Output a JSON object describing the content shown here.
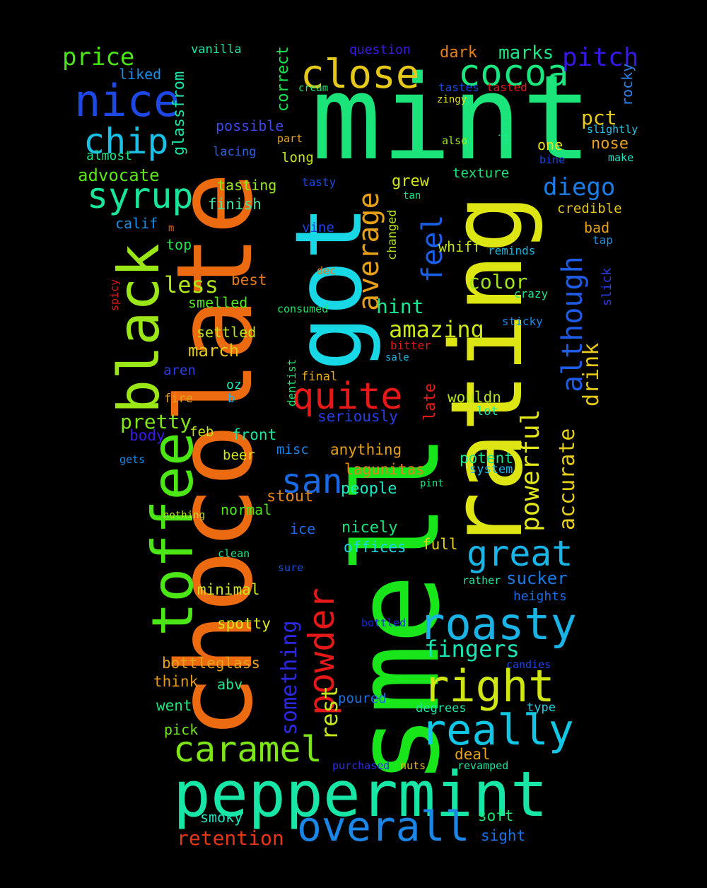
{
  "words": [
    {
      "text": "mint",
      "color": "#1be47a"
    },
    {
      "text": "smell",
      "color": "#18e61a"
    },
    {
      "text": "chocolate",
      "color": "#ec6b10"
    },
    {
      "text": "rating",
      "color": "#dde613"
    },
    {
      "text": "got",
      "color": "#18d8e6"
    },
    {
      "text": "peppermint",
      "color": "#18e6a6"
    },
    {
      "text": "black",
      "color": "#9be617"
    },
    {
      "text": "toffee",
      "color": "#4ce617"
    },
    {
      "text": "overall",
      "color": "#1c86e6"
    },
    {
      "text": "roasty",
      "color": "#1ab3e6"
    },
    {
      "text": "close",
      "color": "#e6c818"
    },
    {
      "text": "cocoa",
      "color": "#1be67d"
    },
    {
      "text": "nice",
      "color": "#1e48e6"
    },
    {
      "text": "right",
      "color": "#cfe613"
    },
    {
      "text": "really",
      "color": "#12c6e6"
    },
    {
      "text": "great",
      "color": "#19b5e6"
    },
    {
      "text": "caramel",
      "color": "#7ee616"
    },
    {
      "text": "syrup",
      "color": "#19e69a"
    },
    {
      "text": "chip",
      "color": "#19c1e6"
    },
    {
      "text": "quite",
      "color": "#e61818"
    },
    {
      "text": "powder",
      "color": "#e61818"
    },
    {
      "text": "san",
      "color": "#1a6ae6"
    },
    {
      "text": "although",
      "color": "#1e5be6"
    },
    {
      "text": "average",
      "color": "#e6a018"
    },
    {
      "text": "feel",
      "color": "#1a60e6"
    },
    {
      "text": "powerful",
      "color": "#e3e618"
    },
    {
      "text": "accurate",
      "color": "#e6cd18"
    },
    {
      "text": "drink",
      "color": "#e6c818"
    },
    {
      "text": "something",
      "color": "#2c2ae6"
    },
    {
      "text": "rest",
      "color": "#c5e619"
    },
    {
      "text": "pitch",
      "color": "#3418e6"
    },
    {
      "text": "price",
      "color": "#4be618"
    },
    {
      "text": "diego",
      "color": "#1a7ee6"
    },
    {
      "text": "fingers",
      "color": "#19e6b4"
    },
    {
      "text": "amazing",
      "color": "#cde619"
    },
    {
      "text": "retention",
      "color": "#e63618"
    },
    {
      "text": "less",
      "color": "#aee619"
    },
    {
      "text": "color",
      "color": "#a1e619"
    },
    {
      "text": "hint",
      "color": "#19e690"
    },
    {
      "text": "pretty",
      "color": "#81e618"
    },
    {
      "text": "marks",
      "color": "#1be685"
    },
    {
      "text": "dark",
      "color": "#e6811a"
    },
    {
      "text": "glassfrom",
      "color": "#19e6a8"
    },
    {
      "text": "correct",
      "color": "#17e650"
    },
    {
      "text": "advocate",
      "color": "#5ae617"
    },
    {
      "text": "pct",
      "color": "#e6cb18"
    },
    {
      "text": "nose",
      "color": "#e6a318"
    },
    {
      "text": "rocky",
      "color": "#2c81e6"
    },
    {
      "text": "liked",
      "color": "#1a8ee6"
    },
    {
      "text": "vanilla",
      "color": "#1be6a8"
    },
    {
      "text": "question",
      "color": "#3b1be6"
    },
    {
      "text": "possible",
      "color": "#3e48e6"
    },
    {
      "text": "almost",
      "color": "#1be681"
    },
    {
      "text": "lacing",
      "color": "#2a63e6"
    },
    {
      "text": "long",
      "color": "#c6e618"
    },
    {
      "text": "tasting",
      "color": "#9be618"
    },
    {
      "text": "finish",
      "color": "#40e6a0"
    },
    {
      "text": "calif",
      "color": "#1a8fe6"
    },
    {
      "text": "top",
      "color": "#1be64d"
    },
    {
      "text": "best",
      "color": "#e67a18"
    },
    {
      "text": "smelled",
      "color": "#51e619"
    },
    {
      "text": "settled",
      "color": "#bfe619"
    },
    {
      "text": "march",
      "color": "#e6c718"
    },
    {
      "text": "aren",
      "color": "#2a3de6"
    },
    {
      "text": "fire",
      "color": "#e6a01a"
    },
    {
      "text": "feb",
      "color": "#c5e618"
    },
    {
      "text": "body",
      "color": "#3c1ae6"
    },
    {
      "text": "front",
      "color": "#1be69d"
    },
    {
      "text": "oz",
      "color": "#1ae6b9"
    },
    {
      "text": "b",
      "color": "#1ab1e6"
    },
    {
      "text": "dentist",
      "color": "#1be670"
    },
    {
      "text": "final",
      "color": "#e6ae19"
    },
    {
      "text": "beer",
      "color": "#d2e618"
    },
    {
      "text": "misc",
      "color": "#1a84e6"
    },
    {
      "text": "anything",
      "color": "#e6a21a"
    },
    {
      "text": "lagunitas",
      "color": "#e6801a"
    },
    {
      "text": "people",
      "color": "#1ae6c0"
    },
    {
      "text": "stout",
      "color": "#e68618"
    },
    {
      "text": "normal",
      "color": "#47e618"
    },
    {
      "text": "ice",
      "color": "#1a6be6"
    },
    {
      "text": "nicely",
      "color": "#1be67e"
    },
    {
      "text": "offices",
      "color": "#1ad8e6"
    },
    {
      "text": "full",
      "color": "#e6d21a"
    },
    {
      "text": "minimal",
      "color": "#d0e618"
    },
    {
      "text": "spotty",
      "color": "#dbe618"
    },
    {
      "text": "bottleglass",
      "color": "#e6a21a"
    },
    {
      "text": "think",
      "color": "#e69a1a"
    },
    {
      "text": "abv",
      "color": "#1be68a"
    },
    {
      "text": "went",
      "color": "#1be679"
    },
    {
      "text": "pick",
      "color": "#6ee618"
    },
    {
      "text": "poured",
      "color": "#1a73e6"
    },
    {
      "text": "smoky",
      "color": "#1be6bd"
    },
    {
      "text": "soft",
      "color": "#1be671"
    },
    {
      "text": "sight",
      "color": "#1a73e6"
    },
    {
      "text": "deal",
      "color": "#e6a518"
    },
    {
      "text": "revamped",
      "color": "#1ae6a3"
    },
    {
      "text": "nuts",
      "color": "#e6bc1a"
    },
    {
      "text": "purchased",
      "color": "#2a2ee6"
    },
    {
      "text": "degrees",
      "color": "#1ae6a3"
    },
    {
      "text": "type",
      "color": "#1ad6e6"
    },
    {
      "text": "candies",
      "color": "#1b45e6"
    },
    {
      "text": "bottled",
      "color": "#1a29e6"
    },
    {
      "text": "sure",
      "color": "#1a4fe6"
    },
    {
      "text": "clean",
      "color": "#1be67d"
    },
    {
      "text": "nothing",
      "color": "#bde618"
    },
    {
      "text": "sucker",
      "color": "#1a7ae6"
    },
    {
      "text": "heights",
      "color": "#1a6be6"
    },
    {
      "text": "rather",
      "color": "#1be6a6"
    },
    {
      "text": "potent",
      "color": "#1be689"
    },
    {
      "text": "system",
      "color": "#1ab8e6"
    },
    {
      "text": "pint",
      "color": "#1ae681"
    },
    {
      "text": "gets",
      "color": "#1a88e6"
    },
    {
      "text": "lot",
      "color": "#1be6a9"
    },
    {
      "text": "wouldn",
      "color": "#b5e618"
    },
    {
      "text": "seriously",
      "color": "#2a3ee6"
    },
    {
      "text": "late",
      "color": "#e61e18"
    },
    {
      "text": "bitter",
      "color": "#e61818"
    },
    {
      "text": "sale",
      "color": "#1ab8e6"
    },
    {
      "text": "sticky",
      "color": "#1a88e6"
    },
    {
      "text": "crazy",
      "color": "#1be686"
    },
    {
      "text": "consumed",
      "color": "#1be669"
    },
    {
      "text": "dec",
      "color": "#e67a18"
    },
    {
      "text": "spicy",
      "color": "#e61818"
    },
    {
      "text": "whiff",
      "color": "#c3e618"
    },
    {
      "text": "reminds",
      "color": "#1ab8e6"
    },
    {
      "text": "changed",
      "color": "#b4e618"
    },
    {
      "text": "grew",
      "color": "#d5e618"
    },
    {
      "text": "tan",
      "color": "#1ae67c"
    },
    {
      "text": "tasty",
      "color": "#1a4be6"
    },
    {
      "text": "vine",
      "color": "#1b43e6"
    },
    {
      "text": "m",
      "color": "#e65a18"
    },
    {
      "text": "texture",
      "color": "#1be677"
    },
    {
      "text": "credible",
      "color": "#e6c618"
    },
    {
      "text": "bad",
      "color": "#e6a418"
    },
    {
      "text": "tap",
      "color": "#1a93e6"
    },
    {
      "text": "slick",
      "color": "#2a3de6"
    },
    {
      "text": "one",
      "color": "#e6e018"
    },
    {
      "text": "bine",
      "color": "#1b45e6"
    },
    {
      "text": "make",
      "color": "#1ae6c3"
    },
    {
      "text": "also",
      "color": "#a5e618"
    },
    {
      "text": "give",
      "color": "#1be690"
    },
    {
      "text": "part",
      "color": "#e6a618"
    },
    {
      "text": "cream",
      "color": "#1be671"
    },
    {
      "text": "tastes",
      "color": "#1b4be6"
    },
    {
      "text": "tasted",
      "color": "#e61818"
    },
    {
      "text": "zingy",
      "color": "#e6e018"
    },
    {
      "text": "slightly",
      "color": "#2cc2e6"
    }
  ]
}
